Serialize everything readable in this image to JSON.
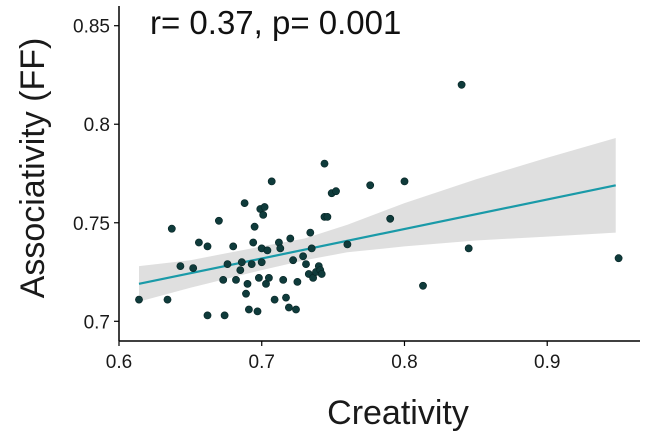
{
  "chart_data": {
    "type": "scatter",
    "title": "",
    "xlabel": "Creativity",
    "ylabel": "Associativity (FF)",
    "annotation": "r= 0.37, p= 0.001",
    "xlim": [
      0.6,
      0.965
    ],
    "ylim": [
      0.69,
      0.86
    ],
    "x_ticks": [
      0.6,
      0.7,
      0.8,
      0.9
    ],
    "x_tick_labels": [
      "0.6",
      "0.7",
      "0.8",
      "0.9"
    ],
    "y_ticks": [
      0.7,
      0.75,
      0.8,
      0.85
    ],
    "y_tick_labels": [
      "0.7",
      "0.75",
      "0.8",
      "0.85"
    ],
    "grid": false,
    "legend": "none",
    "colors": {
      "points": "#0f3b3b",
      "fit_line": "#1a9aa8",
      "ci_band": "#d9d9d9",
      "axis": "#000000"
    },
    "points": [
      [
        0.614,
        0.711
      ],
      [
        0.634,
        0.711
      ],
      [
        0.637,
        0.747
      ],
      [
        0.643,
        0.728
      ],
      [
        0.652,
        0.727
      ],
      [
        0.656,
        0.74
      ],
      [
        0.662,
        0.738
      ],
      [
        0.662,
        0.703
      ],
      [
        0.67,
        0.751
      ],
      [
        0.673,
        0.721
      ],
      [
        0.674,
        0.703
      ],
      [
        0.676,
        0.729
      ],
      [
        0.68,
        0.738
      ],
      [
        0.682,
        0.721
      ],
      [
        0.685,
        0.726
      ],
      [
        0.686,
        0.73
      ],
      [
        0.688,
        0.76
      ],
      [
        0.689,
        0.714
      ],
      [
        0.69,
        0.719
      ],
      [
        0.691,
        0.706
      ],
      [
        0.693,
        0.729
      ],
      [
        0.694,
        0.74
      ],
      [
        0.695,
        0.748
      ],
      [
        0.697,
        0.705
      ],
      [
        0.698,
        0.722
      ],
      [
        0.699,
        0.757
      ],
      [
        0.7,
        0.73
      ],
      [
        0.7,
        0.737
      ],
      [
        0.701,
        0.754
      ],
      [
        0.702,
        0.758
      ],
      [
        0.703,
        0.719
      ],
      [
        0.704,
        0.736
      ],
      [
        0.705,
        0.722
      ],
      [
        0.707,
        0.771
      ],
      [
        0.709,
        0.711
      ],
      [
        0.712,
        0.74
      ],
      [
        0.713,
        0.737
      ],
      [
        0.715,
        0.721
      ],
      [
        0.717,
        0.712
      ],
      [
        0.719,
        0.707
      ],
      [
        0.72,
        0.742
      ],
      [
        0.722,
        0.731
      ],
      [
        0.724,
        0.706
      ],
      [
        0.725,
        0.72
      ],
      [
        0.729,
        0.733
      ],
      [
        0.731,
        0.729
      ],
      [
        0.733,
        0.724
      ],
      [
        0.734,
        0.745
      ],
      [
        0.735,
        0.737
      ],
      [
        0.736,
        0.722
      ],
      [
        0.738,
        0.725
      ],
      [
        0.74,
        0.728
      ],
      [
        0.741,
        0.726
      ],
      [
        0.742,
        0.724
      ],
      [
        0.744,
        0.753
      ],
      [
        0.744,
        0.78
      ],
      [
        0.746,
        0.753
      ],
      [
        0.749,
        0.765
      ],
      [
        0.752,
        0.766
      ],
      [
        0.76,
        0.739
      ],
      [
        0.776,
        0.769
      ],
      [
        0.79,
        0.752
      ],
      [
        0.8,
        0.771
      ],
      [
        0.813,
        0.718
      ],
      [
        0.84,
        0.82
      ],
      [
        0.845,
        0.737
      ],
      [
        0.95,
        0.732
      ]
    ],
    "fit_line": {
      "x": [
        0.614,
        0.948
      ],
      "y": [
        0.719,
        0.769
      ]
    },
    "ci_band": {
      "x": [
        0.614,
        0.65,
        0.7,
        0.73,
        0.76,
        0.8,
        0.85,
        0.9,
        0.948
      ],
      "upper": [
        0.728,
        0.731,
        0.738,
        0.742,
        0.749,
        0.76,
        0.772,
        0.783,
        0.793
      ],
      "lower": [
        0.71,
        0.717,
        0.726,
        0.731,
        0.735,
        0.738,
        0.741,
        0.743,
        0.745
      ]
    }
  }
}
